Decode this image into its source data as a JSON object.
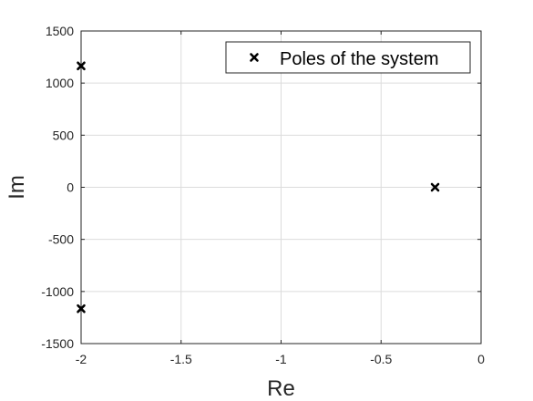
{
  "chart_data": {
    "type": "scatter",
    "title": "",
    "xlabel": "Re",
    "ylabel": "Im",
    "xlim": [
      -2,
      0
    ],
    "ylim": [
      -1500,
      1500
    ],
    "xticks": [
      -2,
      -1.5,
      -1,
      -0.5,
      0
    ],
    "xtick_labels": [
      "-2",
      "-1.5",
      "-1",
      "-0.5",
      "0"
    ],
    "yticks": [
      -1500,
      -1000,
      -500,
      0,
      500,
      1000,
      1500
    ],
    "ytick_labels": [
      "-1500",
      "-1000",
      "-500",
      "0",
      "500",
      "1000",
      "1500"
    ],
    "grid": true,
    "legend_position": "top-right",
    "series": [
      {
        "name": "Poles of the system",
        "marker": "x",
        "color": "#000000",
        "points": [
          {
            "x": -2.0,
            "y": 1165
          },
          {
            "x": -2.0,
            "y": -1165
          },
          {
            "x": -0.23,
            "y": 0
          }
        ]
      }
    ]
  }
}
